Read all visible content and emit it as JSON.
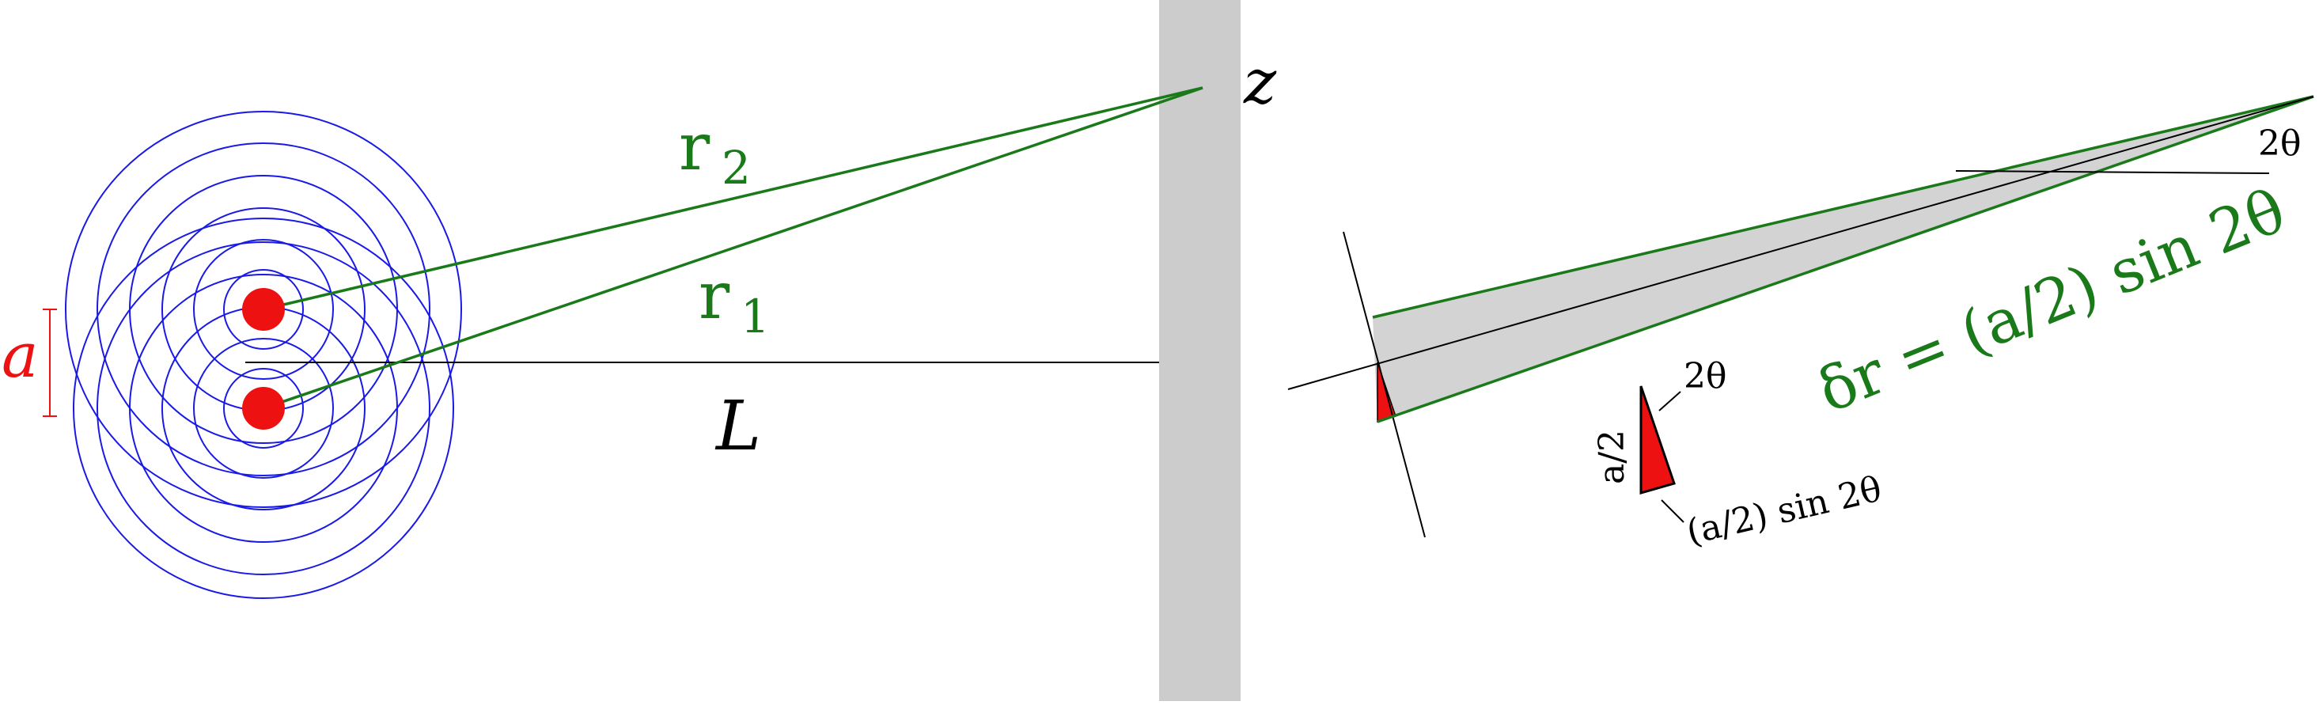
{
  "labels": {
    "a": "a",
    "r2": "r",
    "r2_sub": "2",
    "r1": "r",
    "r1_sub": "1",
    "z": "z",
    "L": "L",
    "delta_r": "δr = (a/2) sin 2θ",
    "two_theta_top": "2θ",
    "two_theta_small": "2θ",
    "a_over_2": "a/2",
    "a2_sin_2theta": "(a/2) sin 2θ"
  },
  "colors": {
    "wave_circles": "#1a1ae6",
    "sources": "#ee1111",
    "green_lines": "#1a7a1a",
    "screen": "#cccccc",
    "wedge_fill": "#d3d3d3",
    "red_fill": "#ee1111",
    "black": "#000000"
  }
}
